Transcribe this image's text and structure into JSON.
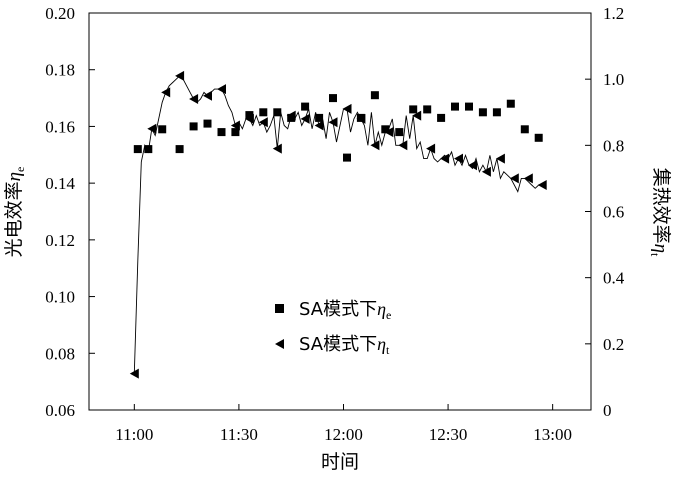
{
  "chart_data": {
    "type": "scatter",
    "xlabel": "时间",
    "ylabel_left": {
      "main": "光电效率",
      "symbol": "η",
      "sub": "e"
    },
    "ylabel_right": {
      "main": "集热效率",
      "symbol": "η",
      "sub": "t"
    },
    "x_ticks": [
      "11:00",
      "11:30",
      "12:00",
      "12:30",
      "13:00"
    ],
    "x_tick_minutes": [
      0,
      30,
      60,
      90,
      120
    ],
    "xlim": [
      "10:47",
      "13:11"
    ],
    "y_left_ticks": [
      "0.06",
      "0.08",
      "0.10",
      "0.12",
      "0.14",
      "0.16",
      "0.18",
      "0.20"
    ],
    "y_left_lim": [
      0.06,
      0.2
    ],
    "y_right_ticks": [
      "0",
      "0.2",
      "0.4",
      "0.6",
      "0.8",
      "1.0",
      "1.2"
    ],
    "y_right_lim": [
      0,
      1.2
    ],
    "legend": {
      "position": "center",
      "entries": [
        {
          "marker": "square",
          "text": "SA模式下",
          "symbol": "η",
          "sub": "e"
        },
        {
          "marker": "triangle-left",
          "text": "SA模式下",
          "symbol": "η",
          "sub": "t"
        }
      ]
    },
    "series": [
      {
        "name": "SA模式下ηe",
        "axis": "left",
        "marker": "square",
        "x": [
          "11:01",
          "11:04",
          "11:08",
          "11:13",
          "11:17",
          "11:21",
          "11:25",
          "11:29",
          "11:33",
          "11:37",
          "11:41",
          "11:45",
          "11:49",
          "11:53",
          "11:57",
          "12:01",
          "12:05",
          "12:09",
          "12:12",
          "12:16",
          "12:20",
          "12:24",
          "12:28",
          "12:32",
          "12:36",
          "12:40",
          "12:44",
          "12:48",
          "12:52",
          "12:56"
        ],
        "y": [
          0.152,
          0.152,
          0.159,
          0.152,
          0.16,
          0.161,
          0.158,
          0.158,
          0.164,
          0.165,
          0.165,
          0.163,
          0.167,
          0.163,
          0.17,
          0.149,
          0.163,
          0.171,
          0.159,
          0.158,
          0.166,
          0.166,
          0.163,
          0.167,
          0.167,
          0.165,
          0.165,
          0.168,
          0.159,
          0.156
        ]
      },
      {
        "name": "SA模式下ηt",
        "axis": "right",
        "marker": "triangle-left",
        "x": [
          "11:00",
          "11:05",
          "11:09",
          "11:13",
          "11:17",
          "11:21",
          "11:25",
          "11:29",
          "11:33",
          "11:37",
          "11:41",
          "11:45",
          "11:49",
          "11:53",
          "11:57",
          "12:01",
          "12:05",
          "12:09",
          "12:13",
          "12:17",
          "12:21",
          "12:25",
          "12:29",
          "12:33",
          "12:37",
          "12:41",
          "12:45",
          "12:49",
          "12:53",
          "12:57"
        ],
        "y": [
          0.11,
          0.85,
          0.96,
          1.01,
          0.94,
          0.95,
          0.97,
          0.86,
          0.88,
          0.87,
          0.79,
          0.89,
          0.88,
          0.86,
          0.87,
          0.91,
          0.88,
          0.8,
          0.84,
          0.8,
          0.89,
          0.79,
          0.76,
          0.76,
          0.74,
          0.72,
          0.76,
          0.7,
          0.7,
          0.68
        ]
      }
    ],
    "connecting_line": {
      "axis": "right",
      "x": [
        "11:00",
        "11:01",
        "11:02",
        "11:03",
        "11:04",
        "11:05",
        "11:06",
        "11:07",
        "11:08",
        "11:09",
        "11:10",
        "11:11",
        "11:12",
        "11:13",
        "11:14",
        "11:15",
        "11:16",
        "11:17",
        "11:18",
        "11:19",
        "11:20",
        "11:21",
        "11:22",
        "11:23",
        "11:24",
        "11:25",
        "11:26",
        "11:27",
        "11:28",
        "11:29",
        "11:30",
        "11:31",
        "11:32",
        "11:33",
        "11:34",
        "11:35",
        "11:36",
        "11:37",
        "11:38",
        "11:39",
        "11:40",
        "11:41",
        "11:42",
        "11:43",
        "11:44",
        "11:45",
        "11:46",
        "11:47",
        "11:48",
        "11:49",
        "11:50",
        "11:51",
        "11:52",
        "11:53",
        "11:54",
        "11:55",
        "11:56",
        "11:57",
        "11:58",
        "11:59",
        "12:00",
        "12:01",
        "12:02",
        "12:03",
        "12:04",
        "12:05",
        "12:06",
        "12:07",
        "12:08",
        "12:09",
        "12:10",
        "12:11",
        "12:12",
        "12:13",
        "12:14",
        "12:15",
        "12:16",
        "12:17",
        "12:18",
        "12:19",
        "12:20",
        "12:21",
        "12:22",
        "12:23",
        "12:24",
        "12:25",
        "12:26",
        "12:27",
        "12:28",
        "12:29",
        "12:30",
        "12:31",
        "12:32",
        "12:33",
        "12:34",
        "12:35",
        "12:36",
        "12:37",
        "12:38",
        "12:39",
        "12:40",
        "12:41",
        "12:42",
        "12:43",
        "12:44",
        "12:45",
        "12:46",
        "12:47",
        "12:48",
        "12:49",
        "12:50",
        "12:51",
        "12:52",
        "12:53",
        "12:54",
        "12:55",
        "12:56",
        "12:57"
      ],
      "y": [
        0.11,
        0.45,
        0.75,
        0.8,
        0.78,
        0.85,
        0.83,
        0.88,
        0.93,
        0.96,
        0.98,
        0.99,
        1.0,
        1.01,
        1.0,
        0.98,
        0.96,
        0.94,
        0.93,
        0.94,
        0.96,
        0.95,
        0.96,
        0.97,
        0.97,
        0.97,
        0.95,
        0.92,
        0.9,
        0.86,
        0.87,
        0.85,
        0.88,
        0.88,
        0.86,
        0.89,
        0.86,
        0.87,
        0.84,
        0.86,
        0.89,
        0.79,
        0.9,
        0.86,
        0.85,
        0.89,
        0.88,
        0.9,
        0.86,
        0.88,
        0.91,
        0.85,
        0.9,
        0.86,
        0.88,
        0.82,
        0.9,
        0.87,
        0.81,
        0.86,
        0.91,
        0.91,
        0.84,
        0.88,
        0.9,
        0.88,
        0.86,
        0.8,
        0.9,
        0.8,
        0.84,
        0.8,
        0.84,
        0.85,
        0.88,
        0.8,
        0.8,
        0.8,
        0.89,
        0.82,
        0.89,
        0.79,
        0.81,
        0.76,
        0.76,
        0.79,
        0.76,
        0.75,
        0.76,
        0.77,
        0.76,
        0.78,
        0.74,
        0.76,
        0.74,
        0.77,
        0.74,
        0.73,
        0.76,
        0.72,
        0.74,
        0.72,
        0.77,
        0.72,
        0.76,
        0.7,
        0.72,
        0.71,
        0.7,
        0.68,
        0.66,
        0.7,
        0.7,
        0.69,
        0.68,
        0.67,
        0.68,
        0.68
      ]
    }
  }
}
